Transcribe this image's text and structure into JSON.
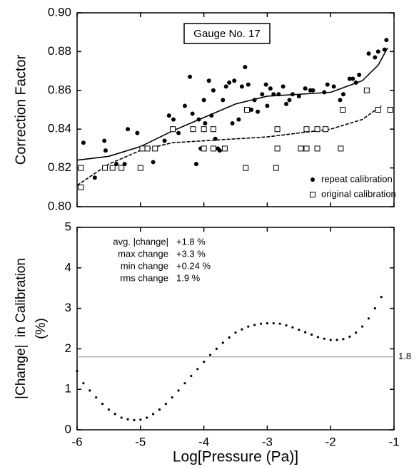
{
  "chart_data": [
    {
      "type": "scatter",
      "title": "Gauge No. 17",
      "ylabel": "Correction Factor",
      "xlim": [
        -6,
        -1
      ],
      "xticks": [
        -6,
        -5,
        -4,
        -3,
        -2,
        -1
      ],
      "show_xtick_labels": false,
      "ylim": [
        0.8,
        0.9
      ],
      "yticks": [
        {
          "value": 0.8,
          "label": "0.80"
        },
        0.82,
        0.84,
        0.86,
        0.88,
        {
          "value": 0.9,
          "label": "0.90"
        }
      ],
      "legend": "lower right",
      "grid": false,
      "series": [
        {
          "name": "repeat calibration",
          "marker": "dot",
          "color": "#000000",
          "x": [
            -5.9,
            -5.72,
            -5.57,
            -5.55,
            -5.38,
            -5.25,
            -5.2,
            -5.05,
            -4.8,
            -4.62,
            -4.55,
            -4.48,
            -4.4,
            -4.3,
            -4.22,
            -4.18,
            -4.12,
            -4.08,
            -4.05,
            -4,
            -3.98,
            -3.92,
            -3.88,
            -3.85,
            -3.82,
            -3.78,
            -3.75,
            -3.7,
            -3.65,
            -3.6,
            -3.55,
            -3.52,
            -3.45,
            -3.4,
            -3.35,
            -3.3,
            -3.25,
            -3.2,
            -3.15,
            -3.08,
            -3.02,
            -3,
            -2.95,
            -2.9,
            -2.82,
            -2.75,
            -2.7,
            -2.65,
            -2.6,
            -2.5,
            -2.4,
            -2.32,
            -2.28,
            -2.1,
            -2.05,
            -1.95,
            -1.85,
            -1.8,
            -1.7,
            -1.65,
            -1.6,
            -1.55,
            -1.4,
            -1.3,
            -1.25,
            -1.15,
            -1.12
          ],
          "values": [
            0.833,
            0.815,
            0.834,
            0.829,
            0.822,
            0.822,
            0.84,
            0.838,
            0.823,
            0.834,
            0.847,
            0.845,
            0.838,
            0.852,
            0.867,
            0.848,
            0.822,
            0.845,
            0.83,
            0.855,
            0.843,
            0.865,
            0.847,
            0.86,
            0.835,
            0.83,
            0.829,
            0.855,
            0.862,
            0.864,
            0.843,
            0.865,
            0.845,
            0.862,
            0.872,
            0.863,
            0.85,
            0.855,
            0.849,
            0.858,
            0.863,
            0.852,
            0.861,
            0.858,
            0.858,
            0.862,
            0.853,
            0.855,
            0.858,
            0.857,
            0.861,
            0.86,
            0.86,
            0.859,
            0.863,
            0.862,
            0.855,
            0.858,
            0.866,
            0.866,
            0.864,
            0.868,
            0.879,
            0.877,
            0.88,
            0.881,
            0.886
          ]
        },
        {
          "name": "original calibration",
          "marker": "square",
          "color": "#000000",
          "x": [
            -5.94,
            -5.94,
            -5.56,
            -5.44,
            -5.3,
            -5,
            -4.97,
            -4.89,
            -4.77,
            -4.49,
            -4.17,
            -4,
            -3.85,
            -4,
            -3.85,
            -3.67,
            -3.34,
            -3.32,
            -2.86,
            -2.84,
            -2.84,
            -2.47,
            -2.38,
            -2.38,
            -2.21,
            -2.21,
            -2.08,
            -1.84,
            -1.81,
            -1.43,
            -1.25,
            -1.06
          ],
          "values": [
            0.81,
            0.82,
            0.82,
            0.82,
            0.82,
            0.82,
            0.83,
            0.83,
            0.83,
            0.84,
            0.84,
            0.84,
            0.84,
            0.83,
            0.83,
            0.83,
            0.82,
            0.85,
            0.82,
            0.84,
            0.83,
            0.83,
            0.84,
            0.83,
            0.84,
            0.83,
            0.84,
            0.83,
            0.85,
            0.86,
            0.85,
            0.85
          ]
        }
      ],
      "fits": [
        {
          "dash": "solid",
          "color": "#000000",
          "x": [
            -6,
            -5.5,
            -5,
            -4.5,
            -4,
            -3.5,
            -3,
            -2.5,
            -2,
            -1.5,
            -1.25,
            -1.1
          ],
          "values": [
            0.824,
            0.826,
            0.831,
            0.839,
            0.846,
            0.853,
            0.857,
            0.858,
            0.859,
            0.865,
            0.873,
            0.882
          ]
        },
        {
          "dash": "dashed",
          "color": "#000000",
          "x": [
            -6,
            -5.5,
            -5,
            -4.5,
            -4,
            -3.5,
            -3,
            -2.5,
            -2,
            -1.5,
            -1.2
          ],
          "values": [
            0.811,
            0.822,
            0.829,
            0.833,
            0.834,
            0.835,
            0.836,
            0.838,
            0.84,
            0.845,
            0.852
          ]
        }
      ]
    },
    {
      "type": "line",
      "style": "dotted",
      "color": "#000000",
      "xlabel": "Log[Pressure (Pa)]",
      "ylabel": [
        "|Change|  in Calibration",
        "(%)"
      ],
      "xlim": [
        -6,
        -1
      ],
      "xticks": [
        -6,
        -5,
        -4,
        -3,
        -2,
        -1
      ],
      "show_xtick_labels": true,
      "ylim": [
        0,
        5
      ],
      "yticks": [
        0,
        1,
        2,
        3,
        4,
        5
      ],
      "grid": false,
      "reference_line": {
        "value": 1.8,
        "label": "1.8"
      },
      "annotations": [
        [
          "avg. |change|",
          "+1.8 %"
        ],
        [
          "max change",
          "+3.3 %"
        ],
        [
          "min change",
          "+0.24 %"
        ],
        [
          "rms change",
          "1.9 %"
        ]
      ],
      "x": [
        -6,
        -5.9,
        -5.8,
        -5.7,
        -5.6,
        -5.5,
        -5.4,
        -5.3,
        -5.2,
        -5.1,
        -5,
        -4.9,
        -4.8,
        -4.7,
        -4.6,
        -4.5,
        -4.4,
        -4.3,
        -4.2,
        -4.1,
        -4,
        -3.9,
        -3.8,
        -3.7,
        -3.6,
        -3.5,
        -3.4,
        -3.3,
        -3.2,
        -3.1,
        -3,
        -2.9,
        -2.8,
        -2.7,
        -2.6,
        -2.5,
        -2.4,
        -2.3,
        -2.2,
        -2.1,
        -2,
        -1.9,
        -1.8,
        -1.7,
        -1.6,
        -1.5,
        -1.4,
        -1.3,
        -1.2
      ],
      "values": [
        1.45,
        1.15,
        0.97,
        0.8,
        0.64,
        0.5,
        0.39,
        0.3,
        0.26,
        0.24,
        0.25,
        0.3,
        0.39,
        0.5,
        0.64,
        0.8,
        0.97,
        1.15,
        1.33,
        1.5,
        1.68,
        1.85,
        2,
        2.15,
        2.28,
        2.4,
        2.48,
        2.55,
        2.59,
        2.62,
        2.63,
        2.63,
        2.62,
        2.58,
        2.53,
        2.47,
        2.41,
        2.35,
        2.29,
        2.25,
        2.22,
        2.22,
        2.24,
        2.3,
        2.4,
        2.55,
        2.75,
        3,
        3.28
      ]
    }
  ]
}
